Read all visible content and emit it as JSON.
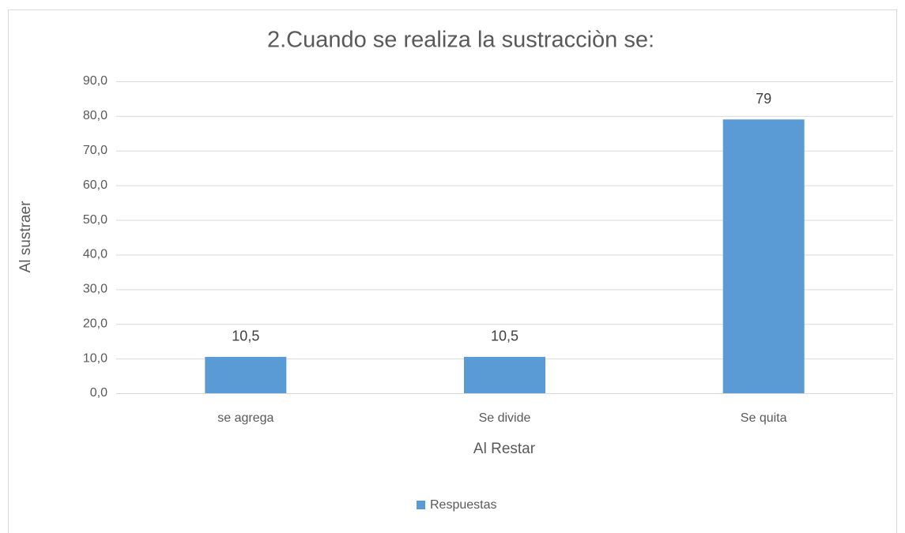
{
  "chart_data": {
    "type": "bar",
    "title": "2.Cuando se realiza la sustracciòn se:",
    "x_label": "Al Restar",
    "y_label": "Al sustraer",
    "categories": [
      "se agrega",
      "Se divide",
      "Se quita"
    ],
    "series": [
      {
        "name": "Respuestas",
        "color": "#5b9bd5",
        "values": [
          10.5,
          10.5,
          79
        ],
        "value_labels": [
          "10,5",
          "10,5",
          "79"
        ]
      }
    ],
    "ylim": [
      0,
      90
    ],
    "yticks": [
      {
        "value": 0,
        "label": "0,0"
      },
      {
        "value": 10,
        "label": "10,0"
      },
      {
        "value": 20,
        "label": "20,0"
      },
      {
        "value": 30,
        "label": "30,0"
      },
      {
        "value": 40,
        "label": "40,0"
      },
      {
        "value": 50,
        "label": "50,0"
      },
      {
        "value": 60,
        "label": "60,0"
      },
      {
        "value": 70,
        "label": "70,0"
      },
      {
        "value": 80,
        "label": "80,0"
      },
      {
        "value": 90,
        "label": "90,0"
      }
    ],
    "grid": true,
    "legend": "bottom"
  }
}
